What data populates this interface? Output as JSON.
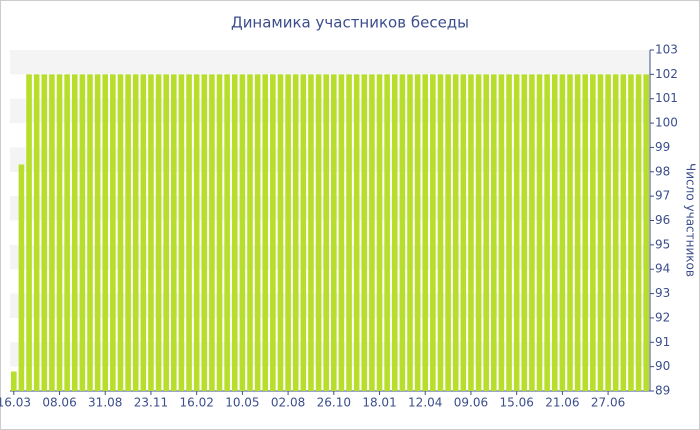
{
  "chart_data": {
    "type": "bar",
    "title": "Динамика участников беседы",
    "y_label": "Число участников",
    "categories": [
      "16.03",
      null,
      null,
      null,
      null,
      null,
      "08.06",
      null,
      null,
      null,
      null,
      null,
      "31.08",
      null,
      null,
      null,
      null,
      null,
      "23.11",
      null,
      null,
      null,
      null,
      null,
      "16.02",
      null,
      null,
      null,
      null,
      null,
      "10.05",
      null,
      null,
      null,
      null,
      null,
      "02.08",
      null,
      null,
      null,
      null,
      null,
      "26.10",
      null,
      null,
      null,
      null,
      null,
      "18.01",
      null,
      null,
      null,
      null,
      null,
      "12.04",
      null,
      null,
      null,
      null,
      null,
      "09.06",
      null,
      null,
      null,
      null,
      null,
      "15.06",
      null,
      null,
      null,
      null,
      null,
      "21.06",
      null,
      null,
      null,
      null,
      null,
      "27.06",
      null,
      null,
      null,
      null,
      null
    ],
    "values": [
      89.8,
      98.3,
      102,
      102,
      102,
      102,
      102,
      102,
      102,
      102,
      102,
      102,
      102,
      102,
      102,
      102,
      102,
      102,
      102,
      102,
      102,
      102,
      102,
      102,
      102,
      102,
      102,
      102,
      102,
      102,
      102,
      102,
      102,
      102,
      102,
      102,
      102,
      102,
      102,
      102,
      102,
      102,
      102,
      102,
      102,
      102,
      102,
      102,
      102,
      102,
      102,
      102,
      102,
      102,
      102,
      102,
      102,
      102,
      102,
      102,
      102,
      102,
      102,
      102,
      102,
      102,
      102,
      102,
      102,
      102,
      102,
      102,
      102,
      102,
      102,
      102,
      102,
      102,
      102,
      102,
      102,
      102,
      102,
      102
    ],
    "color": "#b8de2c",
    "ylim": [
      89,
      103
    ],
    "yticks": [
      89,
      90,
      91,
      92,
      93,
      94,
      95,
      96,
      97,
      98,
      99,
      100,
      101,
      102,
      103
    ],
    "grid": true
  }
}
